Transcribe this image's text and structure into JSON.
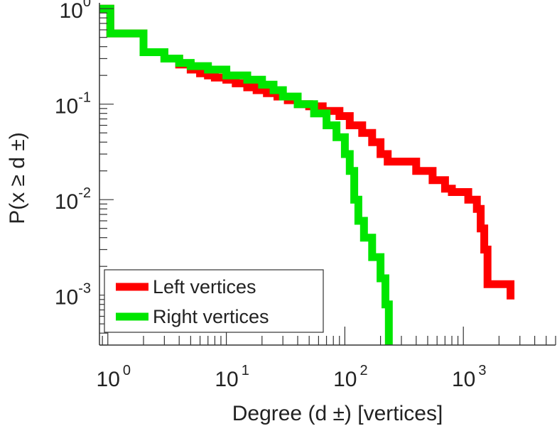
{
  "chart_data": {
    "type": "line",
    "subtype": "step-ccdf",
    "xscale": "log",
    "yscale": "log",
    "xlim": [
      0.85,
      6000
    ],
    "ylim": [
      0.0003,
      1.15
    ],
    "xlabel": "Degree (d  ±) [vertices]",
    "ylabel": "P(x ≥ d ±)",
    "xticks": [
      {
        "base": "10",
        "exp": "0",
        "value": 1
      },
      {
        "base": "10",
        "exp": "1",
        "value": 10
      },
      {
        "base": "10",
        "exp": "2",
        "value": 100
      },
      {
        "base": "10",
        "exp": "3",
        "value": 1000
      }
    ],
    "yticks": [
      {
        "base": "10",
        "exp": "0",
        "value": 1
      },
      {
        "base": "10",
        "exp": "-1",
        "value": 0.1
      },
      {
        "base": "10",
        "exp": "-2",
        "value": 0.01
      },
      {
        "base": "10",
        "exp": "-3",
        "value": 0.001
      }
    ],
    "legend_position": "bottom-left",
    "series": [
      {
        "name": "Left vertices",
        "color": "#ff0000",
        "points": [
          [
            0.85,
            1.0
          ],
          [
            1.05,
            1.0
          ],
          [
            1.05,
            0.55
          ],
          [
            2.0,
            0.55
          ],
          [
            2.0,
            0.35
          ],
          [
            3.0,
            0.35
          ],
          [
            3.0,
            0.3
          ],
          [
            4.0,
            0.3
          ],
          [
            4.0,
            0.26
          ],
          [
            5.0,
            0.26
          ],
          [
            5.0,
            0.23
          ],
          [
            6.0,
            0.23
          ],
          [
            6.0,
            0.21
          ],
          [
            7.0,
            0.21
          ],
          [
            7.0,
            0.2
          ],
          [
            8.0,
            0.2
          ],
          [
            8.0,
            0.19
          ],
          [
            10.0,
            0.19
          ],
          [
            10.0,
            0.18
          ],
          [
            12.0,
            0.18
          ],
          [
            12.0,
            0.165
          ],
          [
            15.0,
            0.165
          ],
          [
            15.0,
            0.15
          ],
          [
            18.0,
            0.15
          ],
          [
            18.0,
            0.14
          ],
          [
            22.0,
            0.14
          ],
          [
            22.0,
            0.13
          ],
          [
            27.0,
            0.13
          ],
          [
            27.0,
            0.12
          ],
          [
            33.0,
            0.12
          ],
          [
            33.0,
            0.11
          ],
          [
            40.0,
            0.11
          ],
          [
            40.0,
            0.1
          ],
          [
            50.0,
            0.1
          ],
          [
            50.0,
            0.095
          ],
          [
            65.0,
            0.095
          ],
          [
            65.0,
            0.085
          ],
          [
            90.0,
            0.085
          ],
          [
            90.0,
            0.075
          ],
          [
            110.0,
            0.075
          ],
          [
            110.0,
            0.06
          ],
          [
            140.0,
            0.06
          ],
          [
            140.0,
            0.05
          ],
          [
            170.0,
            0.05
          ],
          [
            170.0,
            0.04
          ],
          [
            200.0,
            0.04
          ],
          [
            200.0,
            0.03
          ],
          [
            230.0,
            0.03
          ],
          [
            230.0,
            0.025
          ],
          [
            400.0,
            0.025
          ],
          [
            400.0,
            0.02
          ],
          [
            550.0,
            0.02
          ],
          [
            550.0,
            0.016
          ],
          [
            700.0,
            0.016
          ],
          [
            700.0,
            0.013
          ],
          [
            800.0,
            0.013
          ],
          [
            800.0,
            0.012
          ],
          [
            1100.0,
            0.012
          ],
          [
            1100.0,
            0.01
          ],
          [
            1300.0,
            0.01
          ],
          [
            1300.0,
            0.008
          ],
          [
            1400.0,
            0.008
          ],
          [
            1400.0,
            0.005
          ],
          [
            1500.0,
            0.005
          ],
          [
            1500.0,
            0.003
          ],
          [
            1600.0,
            0.003
          ],
          [
            1600.0,
            0.0013
          ],
          [
            2500.0,
            0.0013
          ],
          [
            2500.0,
            0.0009
          ]
        ]
      },
      {
        "name": "Right vertices",
        "color": "#00e600",
        "points": [
          [
            0.85,
            1.0
          ],
          [
            1.05,
            1.0
          ],
          [
            1.05,
            0.55
          ],
          [
            2.0,
            0.55
          ],
          [
            2.0,
            0.35
          ],
          [
            3.0,
            0.35
          ],
          [
            3.0,
            0.3
          ],
          [
            4.0,
            0.3
          ],
          [
            4.0,
            0.27
          ],
          [
            5.0,
            0.27
          ],
          [
            5.0,
            0.25
          ],
          [
            7.0,
            0.25
          ],
          [
            7.0,
            0.23
          ],
          [
            10.0,
            0.23
          ],
          [
            10.0,
            0.2
          ],
          [
            15.0,
            0.2
          ],
          [
            15.0,
            0.18
          ],
          [
            20.0,
            0.18
          ],
          [
            20.0,
            0.16
          ],
          [
            25.0,
            0.16
          ],
          [
            25.0,
            0.14
          ],
          [
            30.0,
            0.14
          ],
          [
            30.0,
            0.12
          ],
          [
            40.0,
            0.12
          ],
          [
            40.0,
            0.1
          ],
          [
            55.0,
            0.1
          ],
          [
            55.0,
            0.08
          ],
          [
            70.0,
            0.08
          ],
          [
            70.0,
            0.06
          ],
          [
            85.0,
            0.06
          ],
          [
            85.0,
            0.045
          ],
          [
            100.0,
            0.045
          ],
          [
            100.0,
            0.03
          ],
          [
            110.0,
            0.03
          ],
          [
            110.0,
            0.02
          ],
          [
            120.0,
            0.02
          ],
          [
            120.0,
            0.01
          ],
          [
            130.0,
            0.01
          ],
          [
            130.0,
            0.006
          ],
          [
            145.0,
            0.006
          ],
          [
            145.0,
            0.004
          ],
          [
            170.0,
            0.004
          ],
          [
            170.0,
            0.0025
          ],
          [
            200.0,
            0.0025
          ],
          [
            200.0,
            0.0015
          ],
          [
            220.0,
            0.0015
          ],
          [
            220.0,
            0.0008
          ],
          [
            235.0,
            0.0008
          ],
          [
            235.0,
            0.0003
          ]
        ]
      }
    ]
  }
}
